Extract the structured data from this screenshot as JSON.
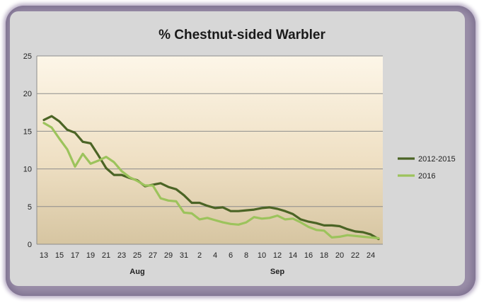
{
  "chart_data": {
    "type": "line",
    "title": "% Chestnut-sided Warbler",
    "x_tick_labels": [
      "13",
      "15",
      "17",
      "19",
      "21",
      "23",
      "25",
      "27",
      "29",
      "31",
      "2",
      "4",
      "6",
      "8",
      "10",
      "12",
      "14",
      "16",
      "18",
      "20",
      "22",
      "24"
    ],
    "month_labels": [
      {
        "label": "Aug",
        "at_index": 12
      },
      {
        "label": "Sep",
        "at_index": 30
      }
    ],
    "ylim": [
      0,
      25
    ],
    "y_ticks": [
      0,
      5,
      10,
      15,
      20,
      25
    ],
    "grid": true,
    "legend_position": "right",
    "series": [
      {
        "name": "2012-2015",
        "color": "#4b6425",
        "values": [
          16.5,
          17.0,
          16.3,
          15.2,
          14.8,
          13.6,
          13.4,
          11.8,
          10.1,
          9.2,
          9.2,
          8.8,
          8.5,
          7.7,
          7.9,
          8.1,
          7.6,
          7.3,
          6.5,
          5.5,
          5.5,
          5.1,
          4.8,
          4.9,
          4.4,
          4.4,
          4.5,
          4.6,
          4.8,
          4.9,
          4.7,
          4.4,
          4.0,
          3.3,
          3.0,
          2.8,
          2.5,
          2.5,
          2.4,
          2.0,
          1.7,
          1.6,
          1.3,
          0.7
        ]
      },
      {
        "name": "2016",
        "color": "#9cc35c",
        "values": [
          16.1,
          15.5,
          14.0,
          12.6,
          10.3,
          12.0,
          10.7,
          11.1,
          11.6,
          10.9,
          9.7,
          8.9,
          8.4,
          7.8,
          7.8,
          6.1,
          5.8,
          5.7,
          4.2,
          4.1,
          3.3,
          3.5,
          3.2,
          2.9,
          2.7,
          2.6,
          2.9,
          3.6,
          3.4,
          3.5,
          3.8,
          3.3,
          3.4,
          2.9,
          2.3,
          1.9,
          1.8,
          0.9,
          1.0,
          1.2,
          1.1,
          1.0,
          0.9,
          0.8
        ]
      }
    ]
  }
}
